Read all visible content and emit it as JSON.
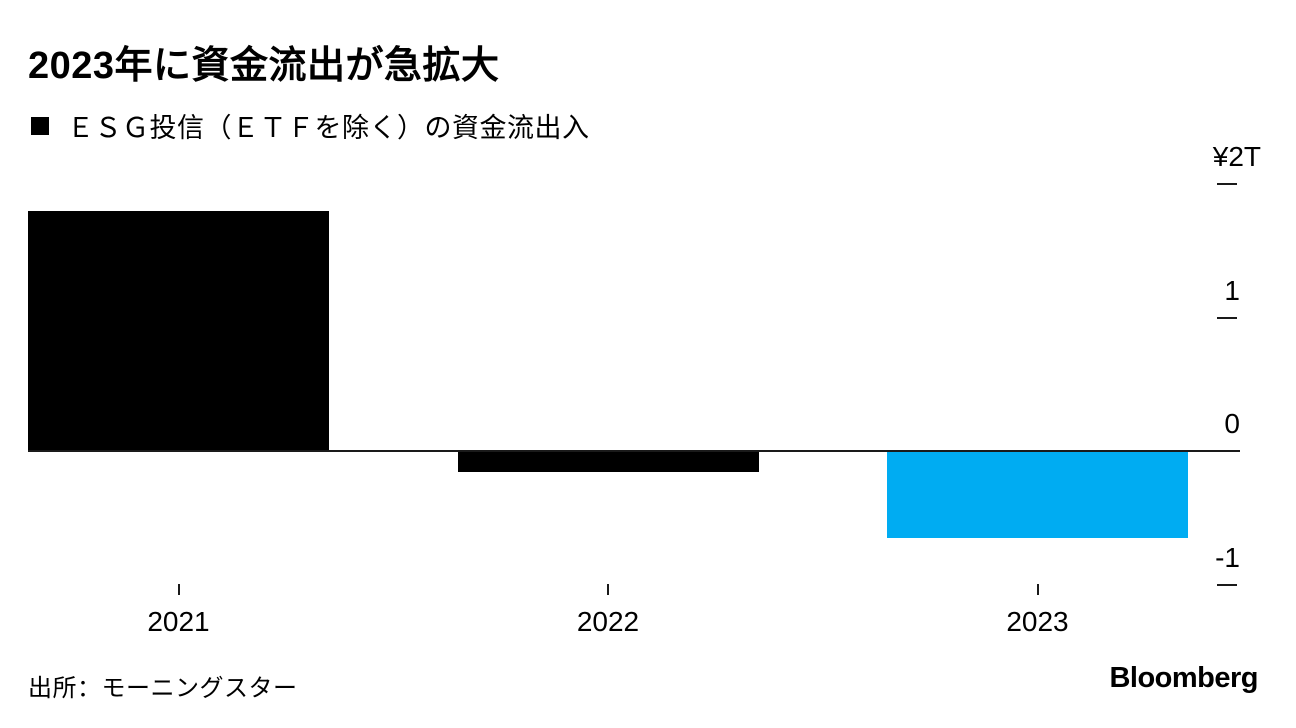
{
  "header": {
    "title": "2023年に資金流出が急拡大",
    "legend_label": "ＥＳＧ投信（ＥＴＦを除く）の資金流出入"
  },
  "chart_data": {
    "type": "bar",
    "title": "2023年に資金流出が急拡大",
    "legend": "ＥＳＧ投信（ＥＴＦを除く）の資金流出入",
    "legend_position": "top-left",
    "categories": [
      "2021",
      "2022",
      "2023"
    ],
    "series": [
      {
        "name": "ＥＳＧ投信（ＥＴＦを除く）の資金流出入",
        "values": [
          1.8,
          -0.16,
          -0.65
        ]
      }
    ],
    "unit": "trillion yen (¥T)",
    "xlabel": "",
    "ylabel": "¥T",
    "ylim": [
      -1.35,
      2.45
    ],
    "yticks": [
      {
        "label": "¥2T",
        "value": 2
      },
      {
        "label": "1",
        "value": 1
      },
      {
        "label": "0",
        "value": 0
      },
      {
        "label": "-1",
        "value": -1
      }
    ],
    "axis_side": "right",
    "grid": false,
    "bar_colors": [
      "#000000",
      "#000000",
      "#00ACF2"
    ],
    "source": "出所：モーニングスター",
    "brand": "Bloomberg"
  },
  "footer": {
    "source": "出所：モーニングスター",
    "brand": "Bloomberg"
  },
  "colors": {
    "background": "#ffffff",
    "bar_black": "#000000",
    "highlight_blue": "#00ACF2",
    "axis_line": "#1a1a1a",
    "text": "#000000"
  }
}
